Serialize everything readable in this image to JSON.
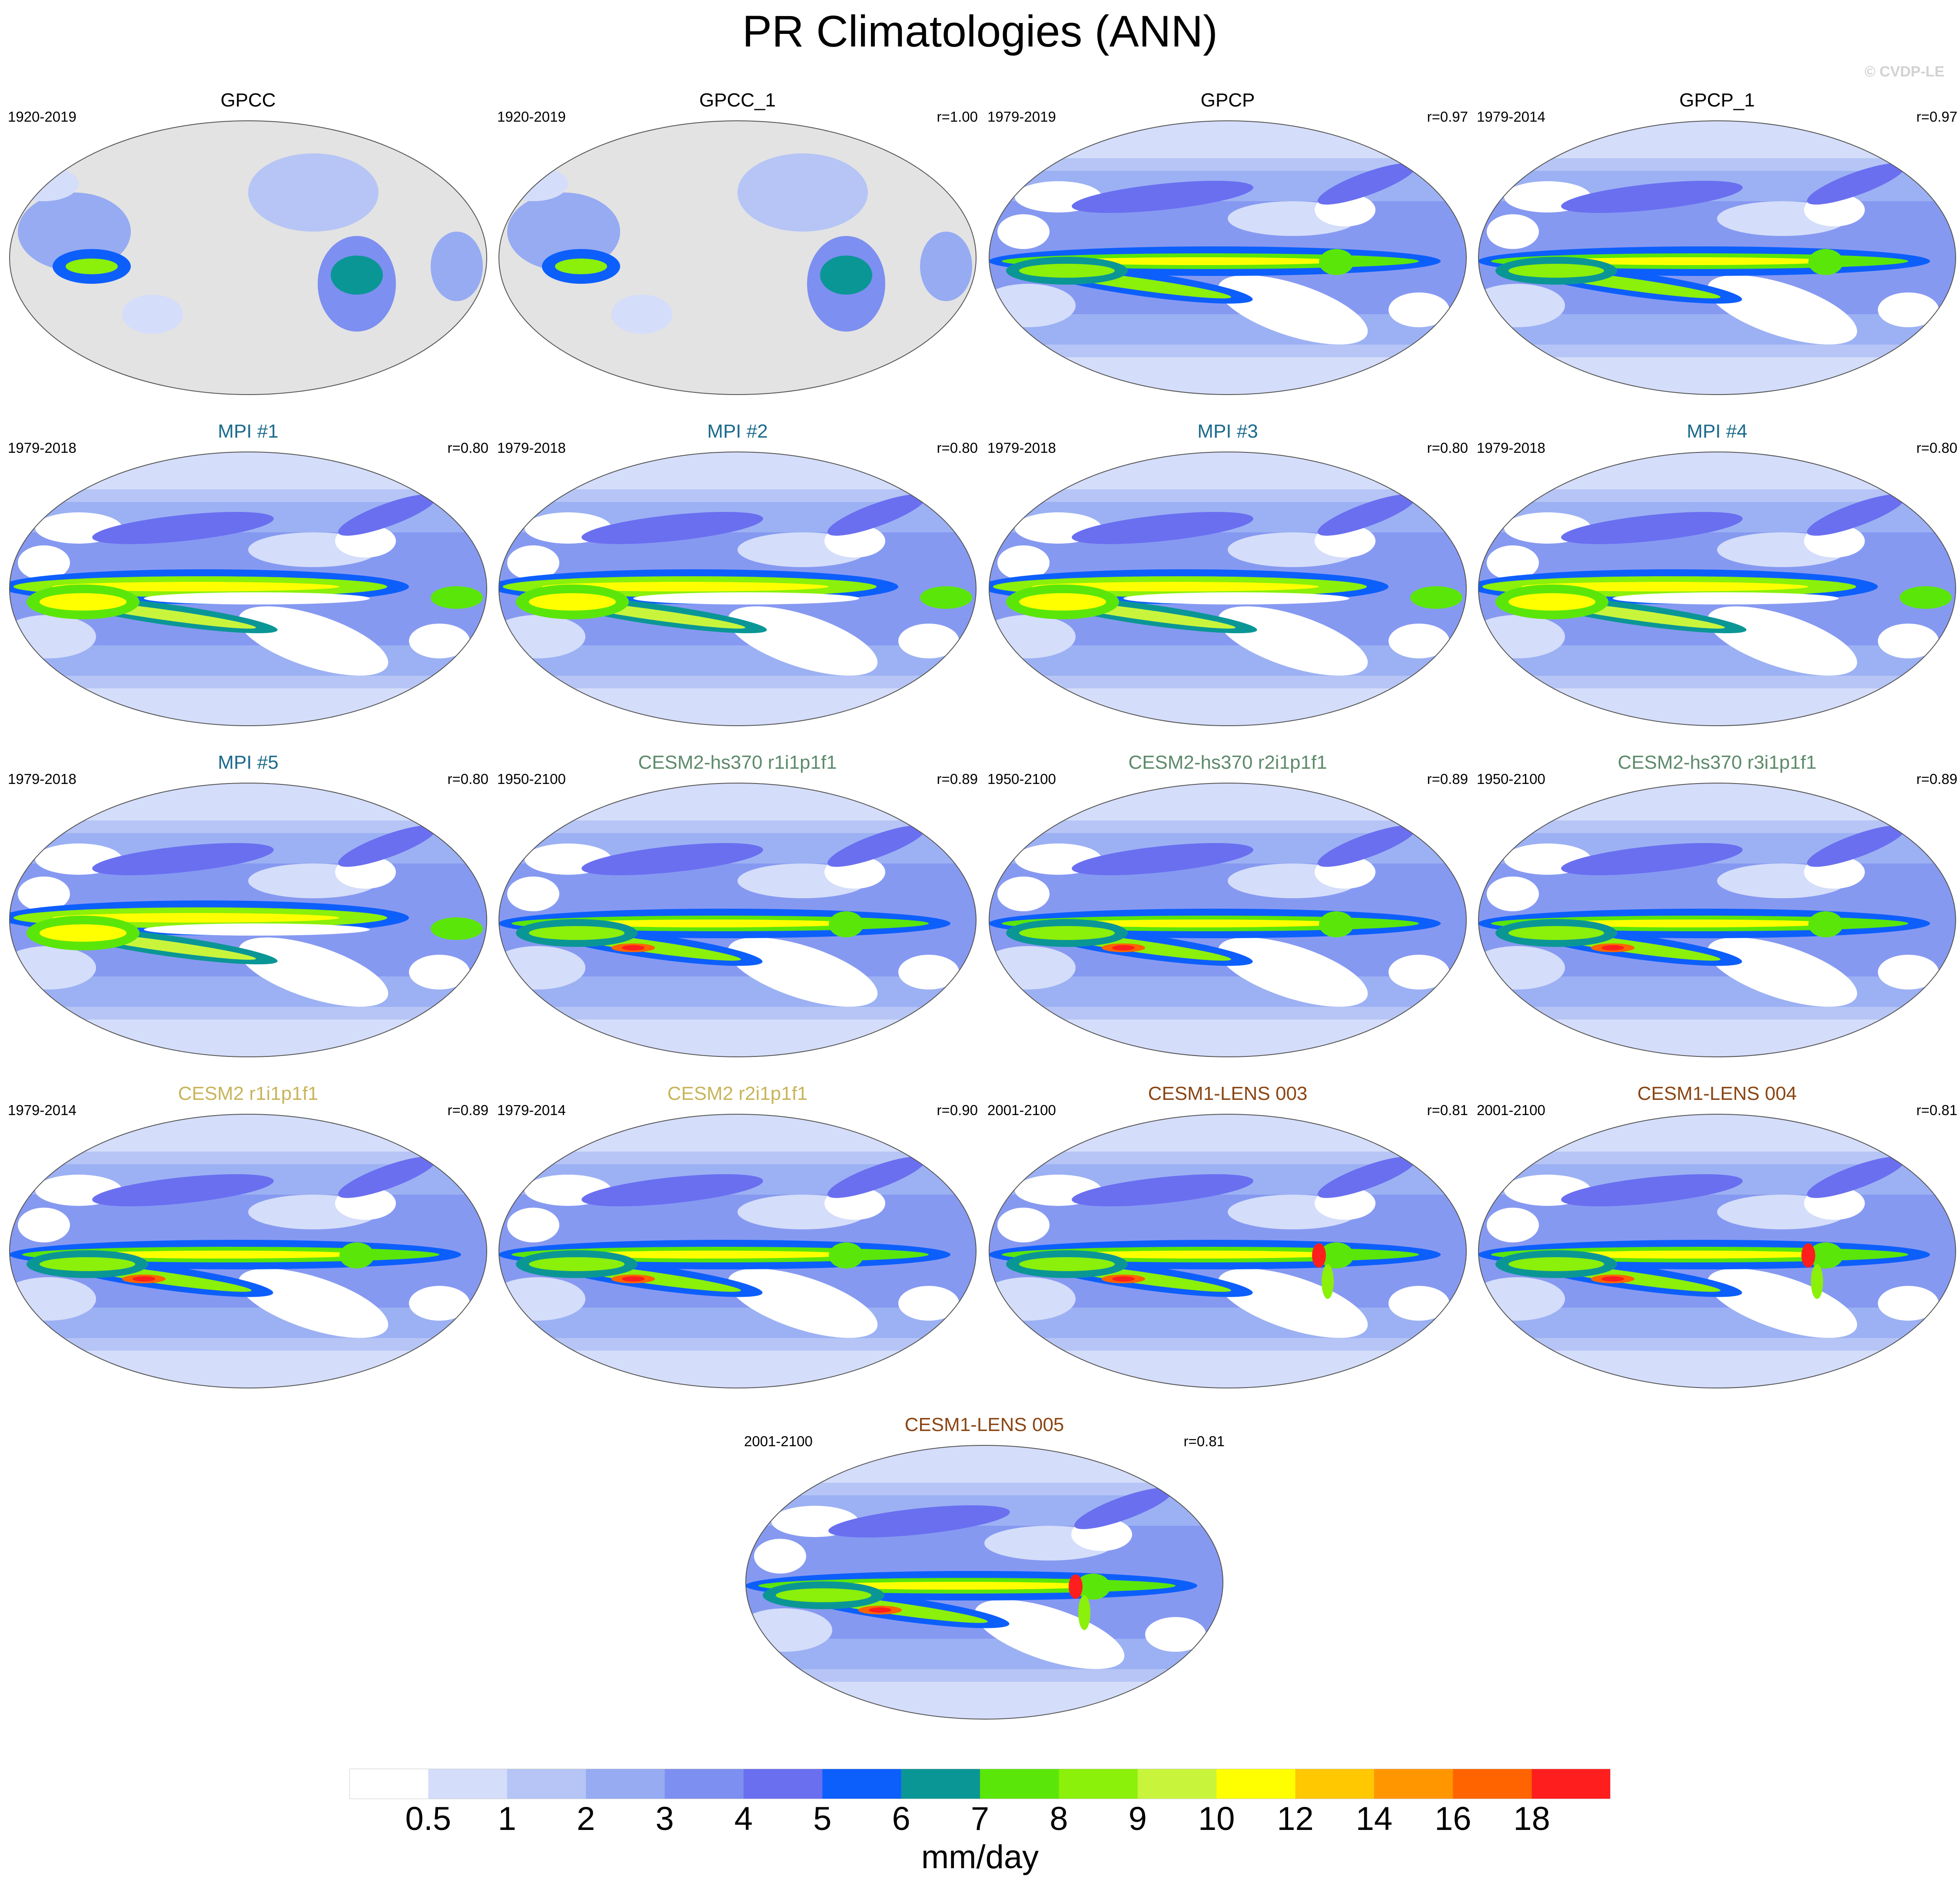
{
  "title": "PR Climatologies (ANN)",
  "credit": "© CVDP-LE",
  "panels": [
    {
      "title": "GPCC",
      "years": "1920-2019",
      "r": "",
      "title_color": "#000000",
      "style": "land"
    },
    {
      "title": "GPCC_1",
      "years": "1920-2019",
      "r": "r=1.00",
      "title_color": "#000000",
      "style": "land"
    },
    {
      "title": "GPCP",
      "years": "1979-2019",
      "r": "r=0.97",
      "title_color": "#000000",
      "style": "obs"
    },
    {
      "title": "GPCP_1",
      "years": "1979-2014",
      "r": "r=0.97",
      "title_color": "#000000",
      "style": "obs"
    },
    {
      "title": "MPI #1",
      "years": "1979-2018",
      "r": "r=0.80",
      "title_color": "#1a6a8c",
      "style": "mpi"
    },
    {
      "title": "MPI #2",
      "years": "1979-2018",
      "r": "r=0.80",
      "title_color": "#1a6a8c",
      "style": "mpi"
    },
    {
      "title": "MPI #3",
      "years": "1979-2018",
      "r": "r=0.80",
      "title_color": "#1a6a8c",
      "style": "mpi"
    },
    {
      "title": "MPI #4",
      "years": "1979-2018",
      "r": "r=0.80",
      "title_color": "#1a6a8c",
      "style": "mpi"
    },
    {
      "title": "MPI #5",
      "years": "1979-2018",
      "r": "r=0.80",
      "title_color": "#1a6a8c",
      "style": "mpi"
    },
    {
      "title": "CESM2-hs370 r1i1p1f1",
      "years": "1950-2100",
      "r": "r=0.89",
      "title_color": "#5d8a6a",
      "style": "cesm2"
    },
    {
      "title": "CESM2-hs370 r2i1p1f1",
      "years": "1950-2100",
      "r": "r=0.89",
      "title_color": "#5d8a6a",
      "style": "cesm2"
    },
    {
      "title": "CESM2-hs370 r3i1p1f1",
      "years": "1950-2100",
      "r": "r=0.89",
      "title_color": "#5d8a6a",
      "style": "cesm2"
    },
    {
      "title": "CESM2 r1i1p1f1",
      "years": "1979-2014",
      "r": "r=0.89",
      "title_color": "#c8b45a",
      "style": "cesm2"
    },
    {
      "title": "CESM2 r2i1p1f1",
      "years": "1979-2014",
      "r": "r=0.90",
      "title_color": "#c8b45a",
      "style": "cesm2"
    },
    {
      "title": "CESM1-LENS 003",
      "years": "2001-2100",
      "r": "r=0.81",
      "title_color": "#8b4513",
      "style": "cesm1"
    },
    {
      "title": "CESM1-LENS 004",
      "years": "2001-2100",
      "r": "r=0.81",
      "title_color": "#8b4513",
      "style": "cesm1"
    },
    {
      "title": "CESM1-LENS 005",
      "years": "2001-2100",
      "r": "r=0.81",
      "title_color": "#8b4513",
      "style": "cesm1"
    }
  ],
  "colorbar": {
    "units": "mm/day",
    "labels": [
      "0.5",
      "1",
      "2",
      "3",
      "4",
      "5",
      "6",
      "7",
      "8",
      "9",
      "10",
      "12",
      "14",
      "16",
      "18"
    ],
    "colors": [
      "#ffffff",
      "#d4ddfa",
      "#b6c5f5",
      "#96abf2",
      "#7d8ff0",
      "#6a6ff0",
      "#0d5ffc",
      "#0b9696",
      "#5be60a",
      "#8bf00a",
      "#c8f53c",
      "#ffff00",
      "#ffc800",
      "#ff9600",
      "#ff6400",
      "#ff1e1e"
    ]
  }
}
